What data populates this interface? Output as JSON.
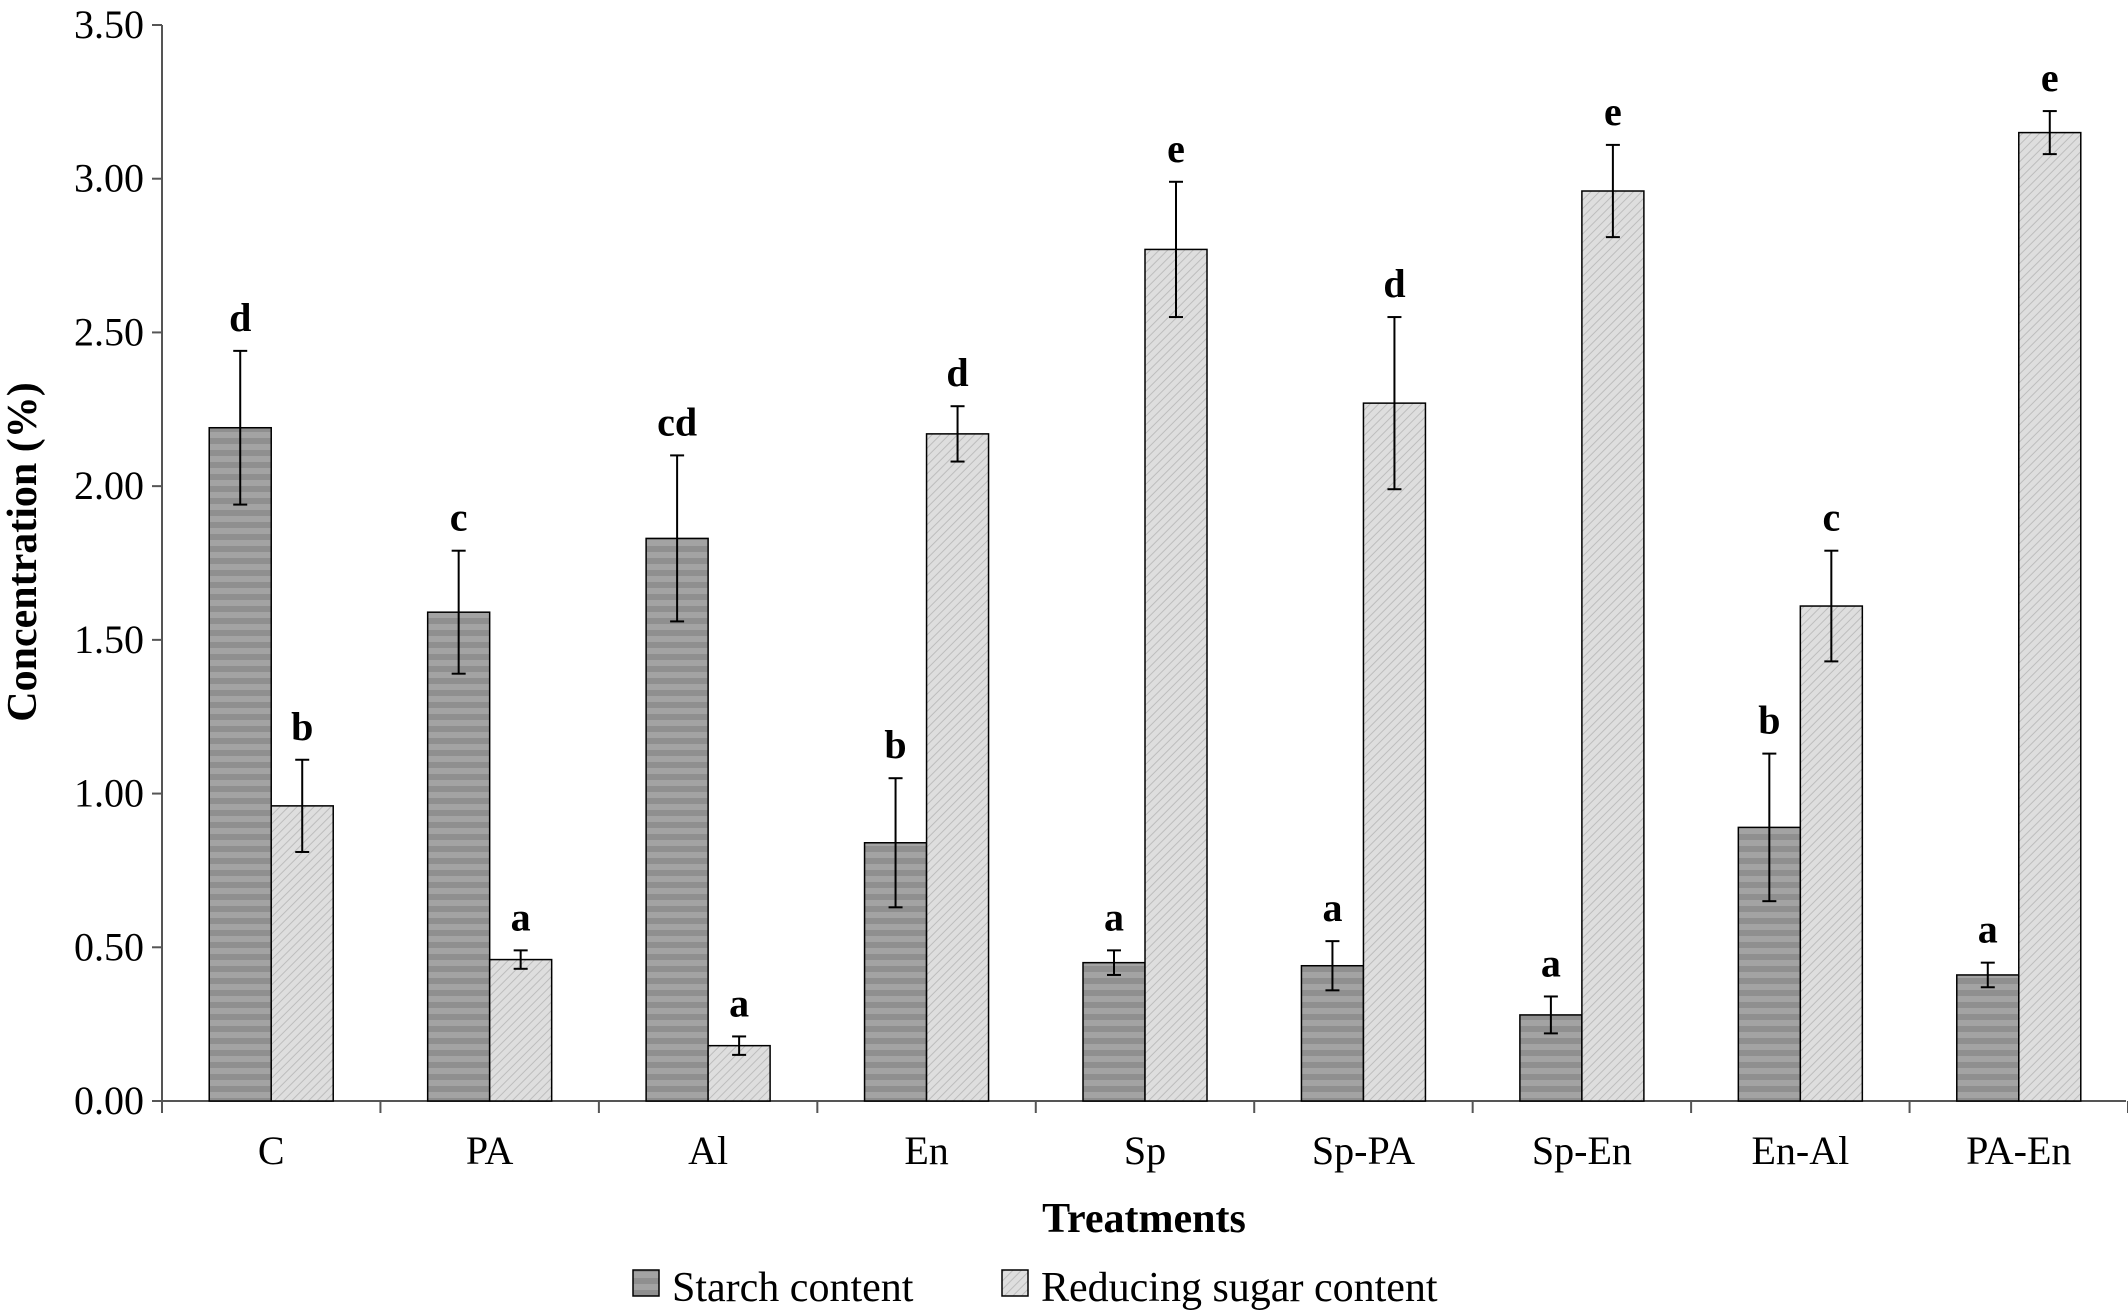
{
  "chart_data": {
    "type": "bar",
    "title": "",
    "xlabel": "Treatments",
    "ylabel": "Concentration (%)",
    "ylim": [
      0,
      3.5
    ],
    "yticks": [
      "0.00",
      "0.50",
      "1.00",
      "1.50",
      "2.00",
      "2.50",
      "3.00",
      "3.50"
    ],
    "categories": [
      "C",
      "PA",
      "Al",
      "En",
      "Sp",
      "Sp-PA",
      "Sp-En",
      "En-Al",
      "PA-En"
    ],
    "series": [
      {
        "name": "Starch content",
        "values": [
          2.19,
          1.59,
          1.83,
          0.84,
          0.45,
          0.44,
          0.28,
          0.89,
          0.41
        ],
        "errors": [
          0.25,
          0.2,
          0.27,
          0.21,
          0.04,
          0.08,
          0.06,
          0.24,
          0.04
        ],
        "labels": [
          "d",
          "c",
          "cd",
          "b",
          "a",
          "a",
          "a",
          "b",
          "a"
        ],
        "color": "#8a8a8a"
      },
      {
        "name": "Reducing sugar content",
        "values": [
          0.96,
          0.46,
          0.18,
          2.17,
          2.77,
          2.27,
          2.96,
          1.61,
          3.15
        ],
        "errors": [
          0.15,
          0.03,
          0.03,
          0.09,
          0.22,
          0.28,
          0.15,
          0.18,
          0.07
        ],
        "labels": [
          "b",
          "a",
          "a",
          "d",
          "e",
          "d",
          "e",
          "c",
          "e"
        ],
        "color": "#d4d4d4"
      }
    ],
    "grid": false,
    "legend_position": "bottom"
  }
}
